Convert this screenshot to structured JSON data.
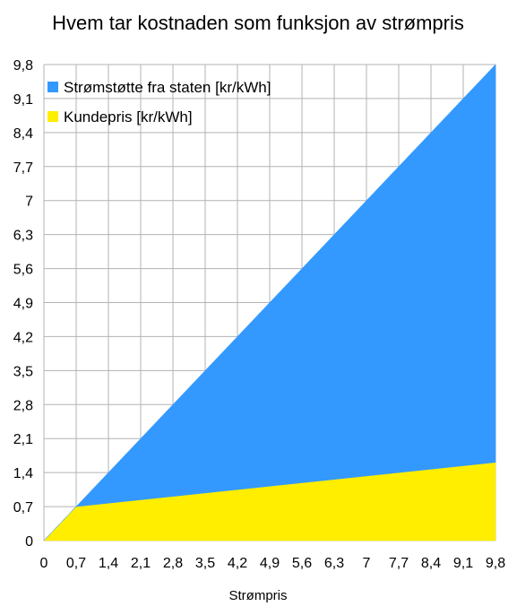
{
  "chart_data": {
    "type": "area",
    "title": "Hvem tar kostnaden som funksjon av strømpris",
    "xlabel": "Strømpris",
    "ylabel": "",
    "xlim": [
      0,
      9.8
    ],
    "ylim": [
      0,
      9.8
    ],
    "x_ticks": [
      "0",
      "0,7",
      "1,4",
      "2,1",
      "2,8",
      "3,5",
      "4,2",
      "4,9",
      "5,6",
      "6,3",
      "7",
      "7,7",
      "8,4",
      "9,1",
      "9,8"
    ],
    "y_ticks": [
      "0",
      "0,7",
      "1,4",
      "2,1",
      "2,8",
      "3,5",
      "4,2",
      "4,9",
      "5,6",
      "6,3",
      "7",
      "7,7",
      "8,4",
      "9,1",
      "9,8"
    ],
    "x": [
      0,
      0.7,
      1.4,
      2.1,
      2.8,
      3.5,
      4.2,
      4.9,
      5.6,
      6.3,
      7,
      7.7,
      8.4,
      9.1,
      9.8
    ],
    "stacked": true,
    "grid": true,
    "legend_position": "top-left",
    "series": [
      {
        "name": "Kundepris [kr/kWh]",
        "color": "#ffee00",
        "values": [
          0,
          0.7,
          0.77,
          0.84,
          0.91,
          0.98,
          1.05,
          1.12,
          1.19,
          1.26,
          1.33,
          1.4,
          1.47,
          1.54,
          1.61
        ]
      },
      {
        "name": "Strømstøtte fra staten [kr/kWh]",
        "color": "#3399ff",
        "values": [
          0,
          0,
          0.63,
          1.26,
          1.89,
          2.52,
          3.15,
          3.78,
          4.41,
          5.04,
          5.67,
          6.3,
          6.93,
          7.56,
          8.19
        ]
      }
    ]
  }
}
